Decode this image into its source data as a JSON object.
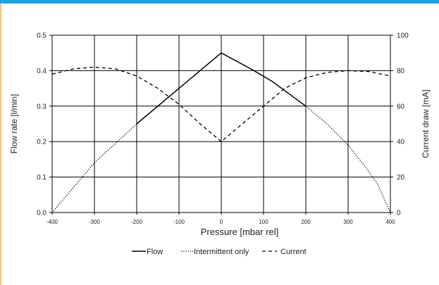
{
  "colors": {
    "accent_bar": "#1ea0e6",
    "frame_border": "#f5c28a",
    "ink": "#000000"
  },
  "chart_data": {
    "type": "line",
    "title": "",
    "xlabel": "Pressure [mbar rel]",
    "ylabel": "Flow rate [l/min]",
    "y2label": "Current draw [mA]",
    "xlim": [
      -400,
      400
    ],
    "ylim": [
      0,
      0.5
    ],
    "y2lim": [
      0,
      100
    ],
    "xticks": [
      "-400",
      "-300",
      "-200",
      "-100",
      "0",
      "100",
      "200",
      "300",
      "400"
    ],
    "yticks": [
      "0.0",
      "0.1",
      "0.2",
      "0.3",
      "0.4",
      "0.5"
    ],
    "y2ticks": [
      "0",
      "20",
      "40",
      "60",
      "80",
      "100"
    ],
    "grid": true,
    "legend_position": "bottom",
    "series": [
      {
        "name": "Flow",
        "axis": "left",
        "dash": "solid",
        "points": [
          [
            -200,
            0.25
          ],
          [
            -100,
            0.35
          ],
          [
            0,
            0.45
          ],
          [
            70,
            0.405
          ],
          [
            120,
            0.37
          ],
          [
            200,
            0.3
          ]
        ]
      },
      {
        "name": "Intermittent only",
        "axis": "left",
        "dash": "dotted",
        "points": [
          [
            -400,
            0.0
          ],
          [
            -350,
            0.07
          ],
          [
            -300,
            0.14
          ],
          [
            -250,
            0.195
          ],
          [
            -200,
            0.25
          ],
          [
            200,
            0.3
          ],
          [
            250,
            0.25
          ],
          [
            300,
            0.19
          ],
          [
            340,
            0.13
          ],
          [
            370,
            0.08
          ],
          [
            400,
            0.0
          ]
        ]
      },
      {
        "name": "Current",
        "axis": "right",
        "dash": "dashed",
        "points": [
          [
            -400,
            78
          ],
          [
            -350,
            81
          ],
          [
            -300,
            82
          ],
          [
            -250,
            81
          ],
          [
            -200,
            77
          ],
          [
            -150,
            70
          ],
          [
            -100,
            61
          ],
          [
            -50,
            50
          ],
          [
            0,
            40
          ],
          [
            50,
            50
          ],
          [
            100,
            60
          ],
          [
            150,
            70
          ],
          [
            200,
            76
          ],
          [
            250,
            79
          ],
          [
            300,
            80
          ],
          [
            350,
            79.5
          ],
          [
            400,
            77
          ]
        ]
      }
    ]
  }
}
